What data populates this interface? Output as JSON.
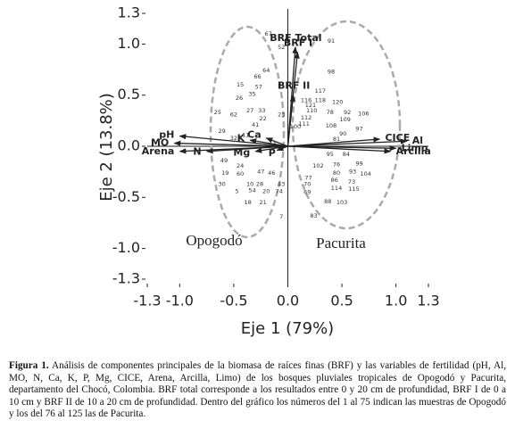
{
  "chart_data": {
    "type": "biplot",
    "xlabel": "Eje 1 (79%)",
    "ylabel": "Eje 2 (13.8%)",
    "xlim": [
      -1.3,
      1.3
    ],
    "ylim": [
      -1.3,
      1.3
    ],
    "xticks": [
      -1.3,
      {
        "value": -1,
        "label": "-1.0"
      },
      -0.5,
      {
        "value": 0,
        "label": "0.0"
      },
      0.5,
      {
        "value": 1,
        "label": "1.0"
      },
      1.3
    ],
    "yticks": [
      1.3,
      {
        "value": 1,
        "label": "1.0"
      },
      0.5,
      {
        "value": 0,
        "label": "0.0"
      },
      -0.5,
      {
        "value": -1,
        "label": "-1.0"
      },
      -1.3
    ],
    "groups": [
      {
        "name": "Opogodó"
      },
      {
        "name": "Pacurita"
      }
    ],
    "vectors": [
      {
        "name": "BRF Total",
        "x": 0.07,
        "y": 0.97
      },
      {
        "name": "BRF I",
        "x": 0.09,
        "y": 0.92
      },
      {
        "name": "BRF II",
        "x": 0.05,
        "y": 0.5
      },
      {
        "name": "pH",
        "x": -1.0,
        "y": 0.1
      },
      {
        "name": "MO",
        "x": -1.05,
        "y": 0.03
      },
      {
        "name": "Arena",
        "x": -1.0,
        "y": -0.05
      },
      {
        "name": "N",
        "x": -0.75,
        "y": -0.05
      },
      {
        "name": "K",
        "x": -0.35,
        "y": 0.06
      },
      {
        "name": "Ca",
        "x": -0.2,
        "y": 0.08
      },
      {
        "name": "Mg",
        "x": -0.3,
        "y": -0.05
      },
      {
        "name": "P",
        "x": -0.1,
        "y": -0.04
      },
      {
        "name": "CICE",
        "x": 0.85,
        "y": 0.07
      },
      {
        "name": "Al",
        "x": 1.1,
        "y": 0.05
      },
      {
        "name": "Limo",
        "x": 1.0,
        "y": -0.02
      },
      {
        "name": "Arcilla",
        "x": 0.95,
        "y": -0.05
      }
    ],
    "points": [
      {
        "label": "67",
        "x": -0.18,
        "y": 1.1
      },
      {
        "label": "52",
        "x": -0.06,
        "y": 0.97
      },
      {
        "label": "64",
        "x": -0.2,
        "y": 0.74
      },
      {
        "label": "66",
        "x": -0.28,
        "y": 0.68
      },
      {
        "label": "15",
        "x": -0.44,
        "y": 0.6
      },
      {
        "label": "57",
        "x": -0.27,
        "y": 0.58
      },
      {
        "label": "35",
        "x": -0.33,
        "y": 0.51
      },
      {
        "label": "26",
        "x": -0.45,
        "y": 0.47
      },
      {
        "label": "25",
        "x": -0.65,
        "y": 0.33
      },
      {
        "label": "62",
        "x": -0.5,
        "y": 0.31
      },
      {
        "label": "27",
        "x": -0.35,
        "y": 0.35
      },
      {
        "label": "33",
        "x": -0.24,
        "y": 0.35
      },
      {
        "label": "23",
        "x": -0.06,
        "y": 0.31
      },
      {
        "label": "22",
        "x": -0.23,
        "y": 0.27
      },
      {
        "label": "41",
        "x": -0.3,
        "y": 0.21
      },
      {
        "label": "29",
        "x": -0.61,
        "y": 0.15
      },
      {
        "label": "32",
        "x": -0.5,
        "y": 0.08
      },
      {
        "label": "11",
        "x": -0.39,
        "y": 0.11
      },
      {
        "label": "1",
        "x": -0.12,
        "y": 0.02
      },
      {
        "label": "49",
        "x": -0.59,
        "y": -0.14
      },
      {
        "label": "24",
        "x": -0.44,
        "y": -0.19
      },
      {
        "label": "19",
        "x": -0.58,
        "y": -0.26
      },
      {
        "label": "60",
        "x": -0.44,
        "y": -0.27
      },
      {
        "label": "47",
        "x": -0.25,
        "y": -0.25
      },
      {
        "label": "46",
        "x": -0.15,
        "y": -0.26
      },
      {
        "label": "43",
        "x": -0.06,
        "y": -0.37
      },
      {
        "label": "30",
        "x": -0.61,
        "y": -0.37
      },
      {
        "label": "10",
        "x": -0.35,
        "y": -0.37
      },
      {
        "label": "28",
        "x": -0.26,
        "y": -0.37
      },
      {
        "label": "5",
        "x": -0.47,
        "y": -0.44
      },
      {
        "label": "54",
        "x": -0.33,
        "y": -0.43
      },
      {
        "label": "20",
        "x": -0.2,
        "y": -0.44
      },
      {
        "label": "74",
        "x": -0.08,
        "y": -0.44
      },
      {
        "label": "18",
        "x": -0.37,
        "y": -0.55
      },
      {
        "label": "21",
        "x": -0.23,
        "y": -0.55
      },
      {
        "label": "7",
        "x": -0.06,
        "y": -0.69
      },
      {
        "label": "91",
        "x": 0.4,
        "y": 1.03
      },
      {
        "label": "98",
        "x": 0.4,
        "y": 0.73
      },
      {
        "label": "117",
        "x": 0.3,
        "y": 0.54
      },
      {
        "label": "118",
        "x": 0.3,
        "y": 0.45
      },
      {
        "label": "116",
        "x": 0.17,
        "y": 0.45
      },
      {
        "label": "121",
        "x": 0.21,
        "y": 0.4
      },
      {
        "label": "120",
        "x": 0.46,
        "y": 0.43
      },
      {
        "label": "92",
        "x": 0.55,
        "y": 0.33
      },
      {
        "label": "106",
        "x": 0.7,
        "y": 0.32
      },
      {
        "label": "110",
        "x": 0.22,
        "y": 0.35
      },
      {
        "label": "78",
        "x": 0.39,
        "y": 0.33
      },
      {
        "label": "112",
        "x": 0.17,
        "y": 0.28
      },
      {
        "label": "111",
        "x": 0.15,
        "y": 0.22
      },
      {
        "label": "109",
        "x": 0.53,
        "y": 0.26
      },
      {
        "label": "108",
        "x": 0.4,
        "y": 0.2
      },
      {
        "label": "100",
        "x": 0.07,
        "y": 0.19
      },
      {
        "label": "90",
        "x": 0.51,
        "y": 0.12
      },
      {
        "label": "97",
        "x": 0.66,
        "y": 0.17
      },
      {
        "label": "81",
        "x": 0.45,
        "y": 0.07
      },
      {
        "label": "95",
        "x": 0.39,
        "y": -0.08
      },
      {
        "label": "84",
        "x": 0.54,
        "y": -0.08
      },
      {
        "label": "76",
        "x": 0.45,
        "y": -0.18
      },
      {
        "label": "102",
        "x": 0.28,
        "y": -0.19
      },
      {
        "label": "99",
        "x": 0.66,
        "y": -0.17
      },
      {
        "label": "80",
        "x": 0.45,
        "y": -0.26
      },
      {
        "label": "93",
        "x": 0.6,
        "y": -0.25
      },
      {
        "label": "104",
        "x": 0.72,
        "y": -0.27
      },
      {
        "label": "77",
        "x": 0.19,
        "y": -0.31
      },
      {
        "label": "70",
        "x": 0.18,
        "y": -0.37
      },
      {
        "label": "86",
        "x": 0.43,
        "y": -0.33
      },
      {
        "label": "73",
        "x": 0.59,
        "y": -0.35
      },
      {
        "label": "114",
        "x": 0.45,
        "y": -0.41
      },
      {
        "label": "115",
        "x": 0.61,
        "y": -0.42
      },
      {
        "label": "69",
        "x": 0.18,
        "y": -0.45
      },
      {
        "label": "88",
        "x": 0.37,
        "y": -0.54
      },
      {
        "label": "103",
        "x": 0.5,
        "y": -0.55
      },
      {
        "label": "83",
        "x": 0.24,
        "y": -0.68
      }
    ]
  },
  "caption": {
    "label": "Figura 1.",
    "text": "Análisis de componentes principales de la biomasa de raíces finas (BRF) y las variables de fertilidad (pH, Al, MO, N, Ca, K, P, Mg, CICE, Arena, Arcilla, Limo) de los bosques pluviales tropicales de Opogodó y Pacurita, departamento del Chocó, Colombia. BRF total corresponde a los resultados entre 0 y 20 cm de profundidad, BRF I de 0 a 10 cm y BRF II de 10 a 20 cm de profundidad. Dentro del gráfico los números del 1 al 75 indican las muestras de Opogodó y los del 76 al 125 las de Pacurita."
  }
}
